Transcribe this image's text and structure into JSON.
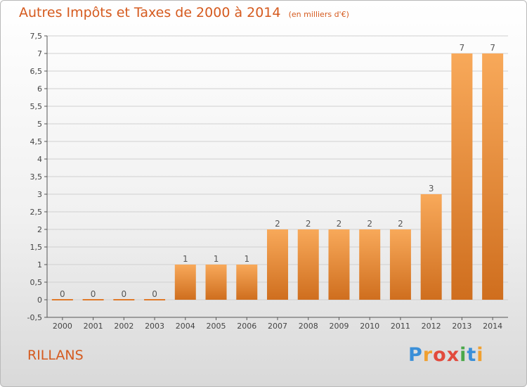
{
  "header": {
    "title": "Autres Impôts et Taxes de 2000 à 2014",
    "subtitle": "(en milliers d'€)"
  },
  "footer": {
    "commune": "RILLANS",
    "logo_letters": [
      "P",
      "r",
      "o",
      "x",
      "i",
      "t",
      "i"
    ],
    "logo_colors": [
      "#3a8fd8",
      "#f0a030",
      "#e24a3c",
      "#e24a3c",
      "#4aa84a",
      "#3a8fd8",
      "#f0a030"
    ]
  },
  "chart_data": {
    "type": "bar",
    "categories": [
      "2000",
      "2001",
      "2002",
      "2003",
      "2004",
      "2005",
      "2006",
      "2007",
      "2008",
      "2009",
      "2010",
      "2011",
      "2012",
      "2013",
      "2014"
    ],
    "values": [
      0,
      0,
      0,
      0,
      1,
      1,
      1,
      2,
      2,
      2,
      2,
      2,
      3,
      7,
      7
    ],
    "data_labels": [
      "0",
      "0",
      "0",
      "0",
      "1",
      "1",
      "1",
      "2",
      "2",
      "2",
      "2",
      "2",
      "3",
      "7",
      "7"
    ],
    "title": "Autres Impôts et Taxes de 2000 à 2014",
    "subtitle": "(en milliers d'€)",
    "xlabel": "",
    "ylabel": "",
    "ylim": [
      -0.5,
      7.5
    ],
    "yticks": [
      "-0,5",
      "0",
      "0,5",
      "1",
      "1,5",
      "2",
      "2,5",
      "3",
      "3,5",
      "4",
      "4,5",
      "5",
      "5,5",
      "6",
      "6,5",
      "7",
      "7,5"
    ],
    "grid": true,
    "bar_color_top": "#f8a95a",
    "bar_color_bottom": "#cf6e1e",
    "title_color": "#d55a1e"
  }
}
